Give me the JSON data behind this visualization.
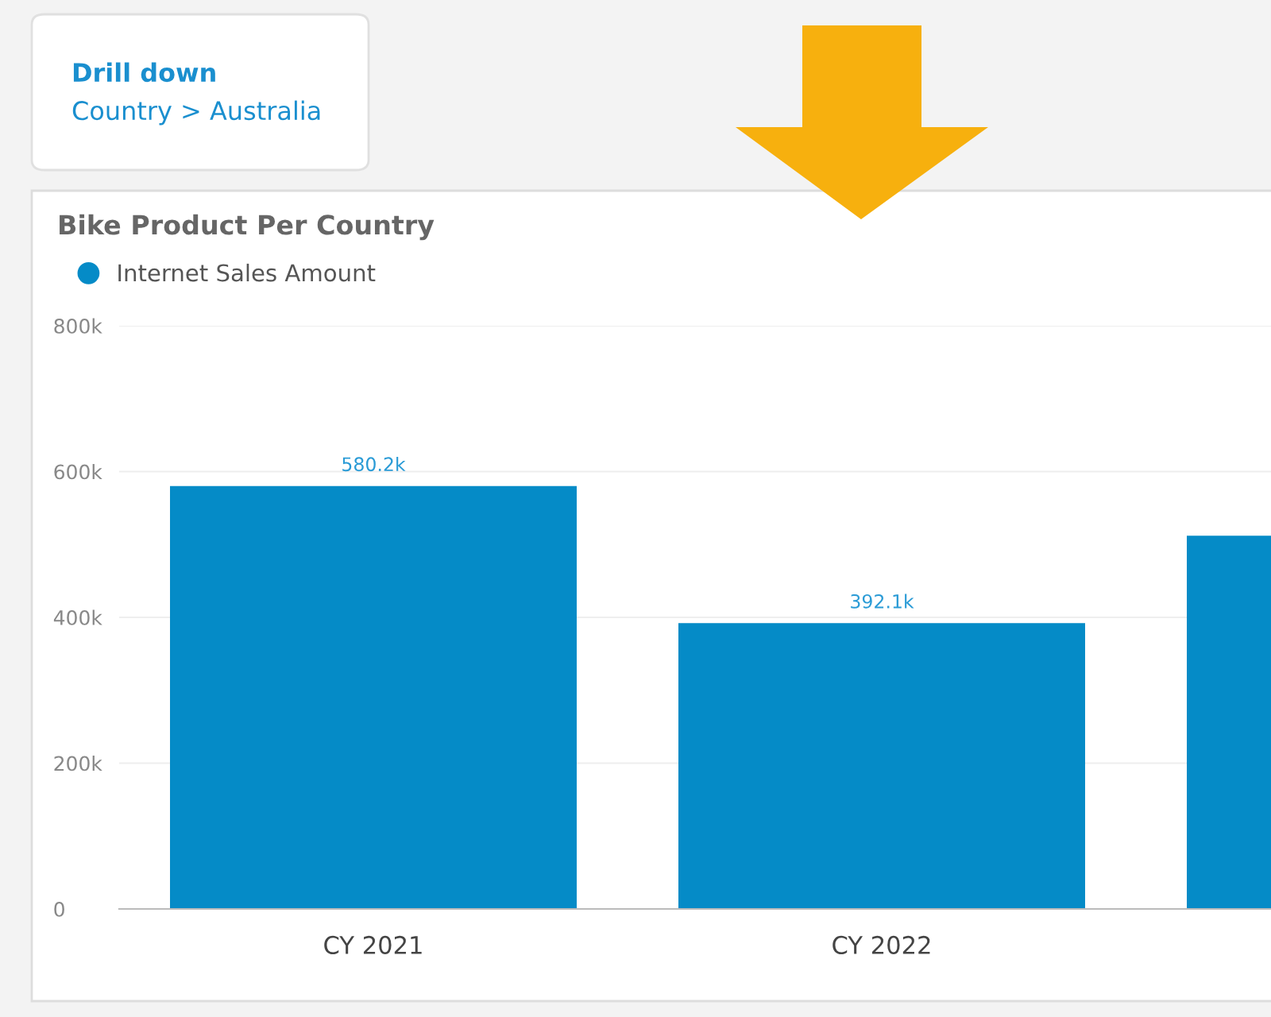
{
  "chart_data": {
    "type": "bar",
    "title": "Bike Product Per Country",
    "annotations": [
      "Drill down",
      "Country > Australia"
    ],
    "categories": [
      "CY 2021",
      "CY 2022",
      null
    ],
    "series": [
      {
        "name": "Internet Sales Amount",
        "color": "#058bc7",
        "values": [
          580200,
          392100,
          512000
        ],
        "value_labels": [
          "580.2k",
          "392.1k",
          null
        ]
      }
    ],
    "ylim": [
      0,
      800000
    ],
    "yticks": [
      {
        "value": 0,
        "label": "0"
      },
      {
        "value": 200000,
        "label": "200k"
      },
      {
        "value": 400000,
        "label": "400k"
      },
      {
        "value": 600000,
        "label": "600k"
      },
      {
        "value": 800000,
        "label": "800k"
      }
    ],
    "grid": "y",
    "legend": "top left"
  }
}
